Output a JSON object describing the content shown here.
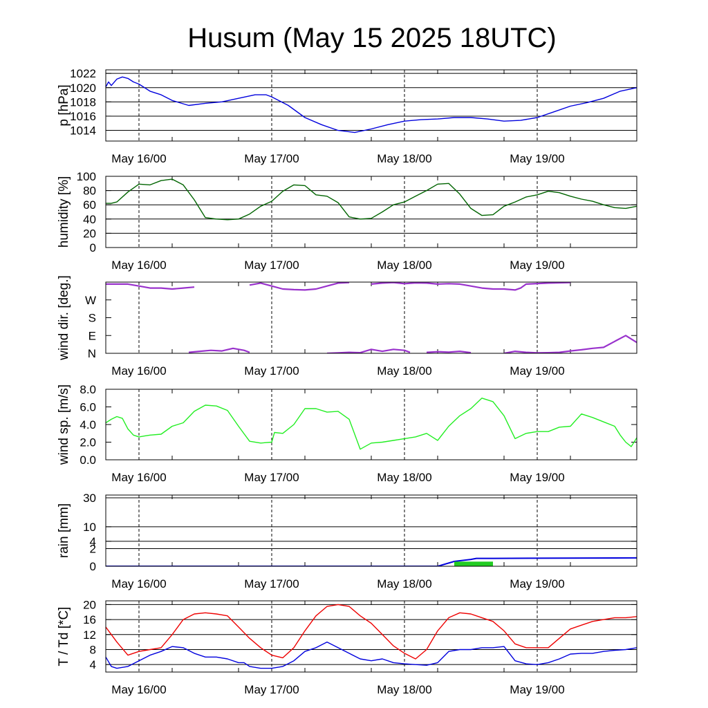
{
  "title": "Husum (May 15 2025 18UTC)",
  "x_axis": {
    "start": "2025-05-15 18:00",
    "end": "2025-05-19 18:00",
    "tick_labels": [
      "May 16/00",
      "May 17/00",
      "May 18/00",
      "May 19/00"
    ]
  },
  "colors": {
    "pressure": "#0000dd",
    "humidity": "#006400",
    "wind_dir": "#9932cc",
    "wind_speed": "#22ee22",
    "rain_total": "#0000dd",
    "rain_bar": "#22cc22",
    "temperature": "#ee0000",
    "dewpoint": "#0000dd"
  },
  "chart_data": [
    {
      "type": "line",
      "ylabel": "p [hPa]",
      "ylim": [
        1012.5,
        1022.5
      ],
      "yticks": [
        1014,
        1016,
        1018,
        1020,
        1022
      ],
      "ytick_labels": [
        "1014",
        "1016",
        "1018",
        "1020",
        "1022"
      ],
      "grid": true,
      "series": [
        {
          "key": "pressure",
          "x": [
            0,
            0.5,
            1,
            2,
            3,
            4,
            5,
            6,
            8,
            10,
            12,
            15,
            18,
            21,
            24,
            27,
            29,
            30,
            33,
            36,
            39,
            42,
            45,
            48,
            51,
            54,
            57,
            60,
            63,
            66,
            69,
            72,
            75,
            78,
            81,
            84,
            87,
            90,
            93,
            96
          ],
          "y": [
            1020.1,
            1020.8,
            1020.3,
            1021.2,
            1021.5,
            1021.3,
            1020.8,
            1020.5,
            1019.5,
            1019.0,
            1018.2,
            1017.5,
            1017.8,
            1018.0,
            1018.5,
            1019.0,
            1019.0,
            1018.7,
            1017.5,
            1015.8,
            1014.8,
            1014.0,
            1013.7,
            1014.2,
            1014.8,
            1015.3,
            1015.5,
            1015.6,
            1015.8,
            1015.8,
            1015.6,
            1015.3,
            1015.4,
            1015.8,
            1016.6,
            1017.4,
            1017.9,
            1018.5,
            1019.5,
            1020.0
          ]
        }
      ]
    },
    {
      "type": "line",
      "ylabel": "humidity [%]",
      "ylim": [
        0,
        100
      ],
      "yticks": [
        0,
        20,
        40,
        60,
        80,
        100
      ],
      "ytick_labels": [
        "0",
        "20",
        "40",
        "60",
        "80",
        "100"
      ],
      "grid": true,
      "series": [
        {
          "key": "humidity",
          "x": [
            0,
            1,
            2,
            4,
            6,
            8,
            10,
            12,
            14,
            16,
            18,
            20,
            22,
            24,
            26,
            28,
            30,
            32,
            34,
            36,
            38,
            40,
            42,
            44,
            46,
            48,
            50,
            52,
            54,
            56,
            58,
            60,
            62,
            64,
            66,
            68,
            70,
            72,
            74,
            76,
            78,
            80,
            82,
            84,
            86,
            88,
            90,
            92,
            94,
            96
          ],
          "y": [
            62,
            62,
            64,
            78,
            89,
            88,
            94,
            96,
            88,
            67,
            42,
            40,
            39,
            40,
            47,
            58,
            65,
            79,
            88,
            87,
            74,
            72,
            63,
            43,
            40,
            41,
            50,
            60,
            64,
            72,
            80,
            89,
            90,
            75,
            55,
            45,
            46,
            58,
            64,
            71,
            74,
            79,
            77,
            72,
            68,
            65,
            60,
            56,
            55,
            58
          ]
        }
      ]
    },
    {
      "type": "scatter",
      "ylabel": "wind dir. [deg.]",
      "ylim": [
        0,
        360
      ],
      "yticks": [
        0,
        90,
        180,
        270
      ],
      "ytick_labels": [
        "N",
        "E",
        "S",
        "W"
      ],
      "grid": false,
      "series": [
        {
          "key": "wind_dir",
          "segments": [
            {
              "x": [
                0,
                2,
                4,
                6,
                8,
                10,
                12,
                14,
                16
              ],
              "y": [
                350,
                350,
                350,
                340,
                330,
                330,
                325,
                330,
                335
              ]
            },
            {
              "x": [
                26,
                28,
                30,
                32,
                34,
                36,
                38,
                40,
                42,
                44
              ],
              "y": [
                345,
                355,
                340,
                325,
                322,
                320,
                325,
                340,
                355,
                358
              ]
            },
            {
              "x": [
                48,
                50,
                52,
                54,
                56,
                58,
                60,
                62,
                64,
                66,
                68,
                70,
                72,
                74,
                75,
                76,
                80,
                84
              ],
              "y": [
                350,
                355,
                358,
                352,
                356,
                355,
                350,
                352,
                350,
                340,
                330,
                325,
                325,
                320,
                330,
                350,
                355,
                358
              ]
            },
            {
              "x": [
                15,
                17,
                19,
                21,
                23,
                25,
                26
              ],
              "y": [
                5,
                10,
                15,
                12,
                25,
                15,
                5
              ]
            },
            {
              "x": [
                40,
                42,
                44,
                46,
                48,
                50,
                52,
                54,
                55
              ],
              "y": [
                0,
                2,
                5,
                3,
                20,
                10,
                20,
                15,
                5
              ]
            },
            {
              "x": [
                58,
                60,
                62,
                64,
                66
              ],
              "y": [
                5,
                8,
                6,
                10,
                3
              ]
            },
            {
              "x": [
                72,
                74,
                76,
                78,
                80,
                82,
                84,
                86,
                88,
                90,
                92,
                94,
                96
              ],
              "y": [
                0,
                10,
                5,
                2,
                3,
                5,
                12,
                18,
                25,
                30,
                60,
                90,
                55
              ]
            }
          ]
        }
      ]
    },
    {
      "type": "line",
      "ylabel": "wind sp. [m/s]",
      "ylim": [
        0,
        8
      ],
      "yticks": [
        0,
        2,
        4,
        6,
        8
      ],
      "ytick_labels": [
        "0.0",
        "2.0",
        "4.0",
        "6.0",
        "8.0"
      ],
      "grid": false,
      "series": [
        {
          "key": "wind_speed",
          "x": [
            0,
            1,
            2,
            3,
            4,
            5,
            6,
            7,
            8,
            10,
            12,
            14,
            16,
            18,
            20,
            22,
            24,
            26,
            28,
            30,
            30.5,
            32,
            34,
            36,
            38,
            40,
            42,
            44,
            46,
            48,
            50,
            52,
            54,
            56,
            58,
            60,
            62,
            64,
            66,
            68,
            70,
            72,
            74,
            76,
            78,
            80,
            82,
            84,
            86,
            88,
            90,
            92,
            93,
            94,
            95,
            96
          ],
          "y": [
            4.2,
            4.6,
            4.9,
            4.7,
            3.5,
            2.8,
            2.6,
            2.7,
            2.8,
            2.9,
            3.8,
            4.2,
            5.5,
            6.2,
            6.1,
            5.6,
            3.8,
            2.1,
            1.9,
            2.0,
            3.1,
            3.0,
            4.0,
            5.8,
            5.8,
            5.4,
            5.5,
            4.6,
            1.2,
            1.9,
            2.0,
            2.2,
            2.4,
            2.6,
            3.0,
            2.2,
            3.8,
            5.0,
            5.8,
            7.0,
            6.6,
            5.0,
            2.4,
            3.0,
            3.2,
            3.2,
            3.7,
            3.8,
            5.2,
            4.8,
            4.3,
            3.8,
            2.8,
            2.0,
            1.5,
            2.5
          ]
        }
      ]
    },
    {
      "type": "area",
      "ylabel": "rain [mm]",
      "ylim": [
        0,
        30
      ],
      "yticks": [
        0,
        2,
        4,
        10,
        30
      ],
      "ytick_labels": [
        "0",
        "2",
        "4",
        "10",
        "30"
      ],
      "grid": true,
      "series": [
        {
          "key": "rain_total",
          "x": [
            0,
            60,
            63,
            66,
            67,
            70,
            96
          ],
          "y": [
            0,
            0,
            0.15,
            0.3,
            0.4,
            0.4,
            0.45
          ]
        },
        {
          "key": "rain_bar",
          "x": [
            63,
            70
          ],
          "y": [
            0.1,
            0.1
          ]
        }
      ]
    },
    {
      "type": "line",
      "ylabel": "T / Td [*C]",
      "ylim": [
        2,
        21
      ],
      "yticks": [
        4,
        8,
        12,
        16,
        20
      ],
      "ytick_labels": [
        "4",
        "8",
        "12",
        "16",
        "20"
      ],
      "grid": true,
      "series": [
        {
          "key": "temperature",
          "x": [
            0,
            2,
            4,
            6,
            8,
            10,
            12,
            14,
            16,
            18,
            20,
            22,
            24,
            26,
            28,
            30,
            32,
            34,
            36,
            38,
            40,
            42,
            44,
            46,
            48,
            50,
            52,
            54,
            56,
            58,
            60,
            62,
            64,
            66,
            68,
            70,
            72,
            74,
            76,
            78,
            80,
            82,
            84,
            86,
            88,
            90,
            92,
            94,
            96
          ],
          "y": [
            14,
            10,
            6.5,
            7.5,
            8,
            8.5,
            12,
            16,
            17.5,
            17.8,
            17.5,
            17,
            14,
            11,
            8.5,
            6.5,
            5.8,
            8.5,
            13,
            17,
            19.5,
            20,
            19.5,
            17,
            15,
            12,
            9,
            7,
            5.5,
            8,
            13,
            16.5,
            17.8,
            17.5,
            16.5,
            15.5,
            13,
            9.5,
            8.5,
            8.5,
            8.5,
            11,
            13.5,
            14.5,
            15.5,
            16,
            16.5,
            16.5,
            16.8
          ]
        },
        {
          "key": "dewpoint",
          "x": [
            0,
            1,
            2,
            4,
            6,
            8,
            10,
            12,
            14,
            16,
            18,
            20,
            22,
            24,
            25,
            26,
            28,
            30,
            32,
            34,
            36,
            38,
            40,
            42,
            44,
            46,
            48,
            50,
            52,
            54,
            56,
            58,
            60,
            62,
            64,
            66,
            68,
            70,
            72,
            74,
            76,
            78,
            80,
            82,
            84,
            86,
            88,
            90,
            92,
            94,
            96
          ],
          "y": [
            6,
            3.5,
            3,
            3.5,
            5,
            6.5,
            7.5,
            8.8,
            8.5,
            7,
            6,
            6,
            5.5,
            4.5,
            4.5,
            3.5,
            3,
            3,
            3.5,
            5,
            7.5,
            8.5,
            10,
            8.5,
            7,
            5.5,
            5,
            5.5,
            4.5,
            4.2,
            4,
            3.8,
            4.5,
            7.5,
            8,
            8,
            8.5,
            8.5,
            8.8,
            5,
            4.2,
            4,
            4.5,
            5.5,
            6.8,
            7,
            7,
            7.5,
            7.8,
            8,
            8.5
          ]
        }
      ]
    }
  ]
}
